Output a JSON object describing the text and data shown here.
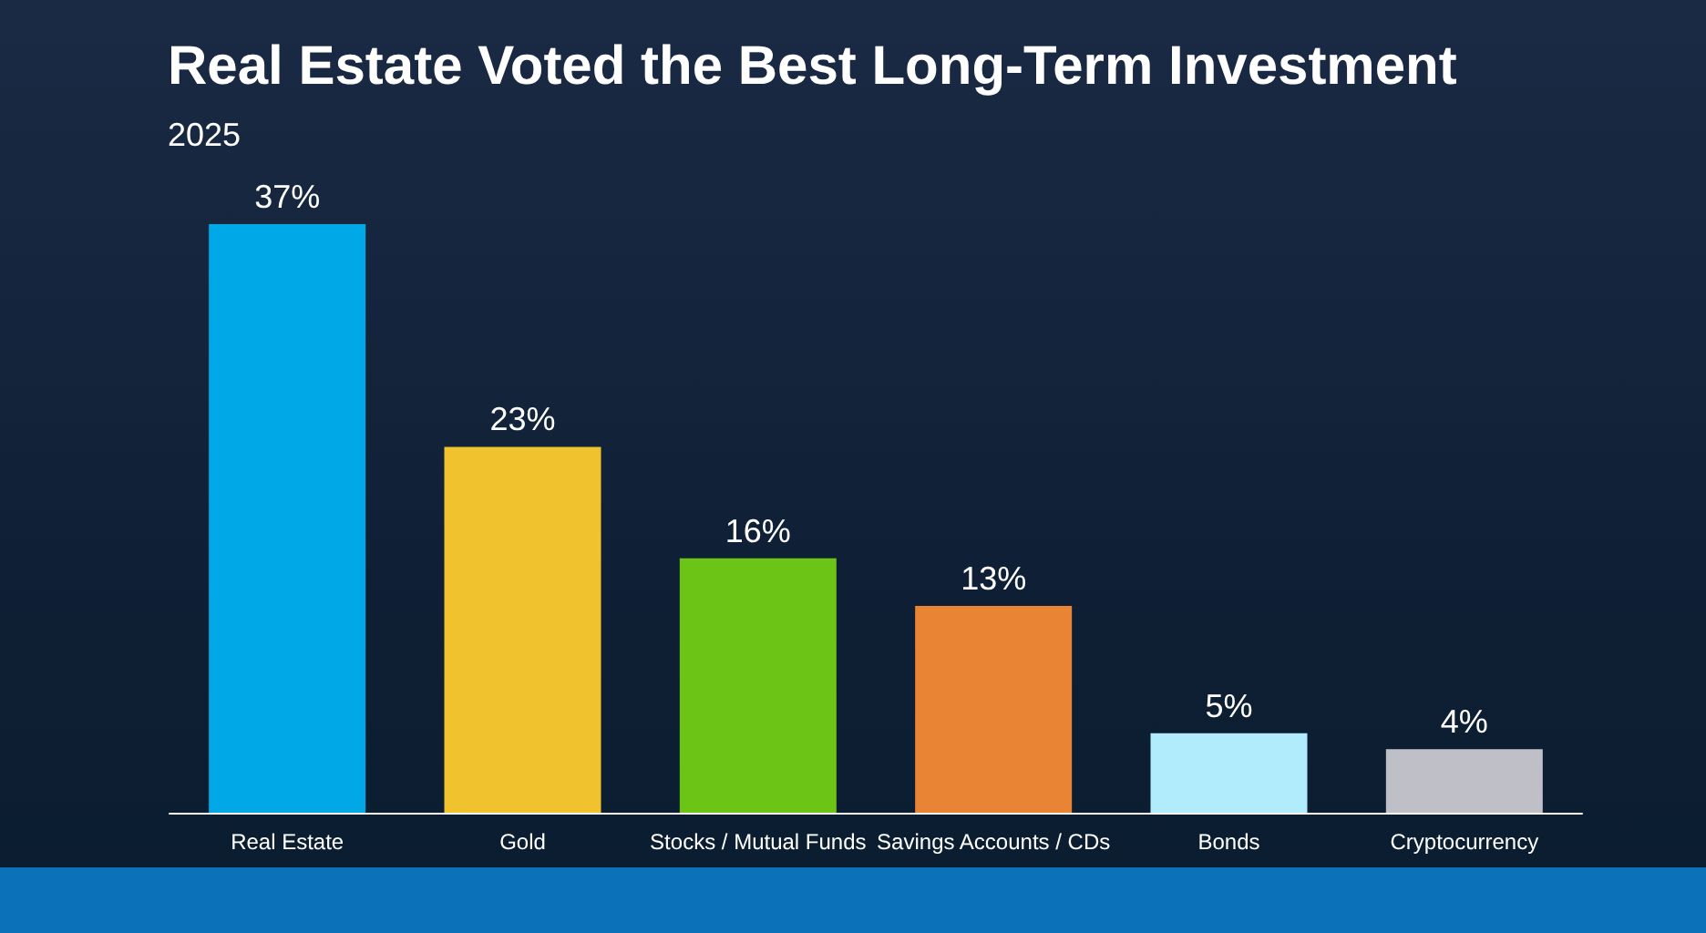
{
  "chart_data": {
    "type": "bar",
    "title": "Real Estate Voted the Best Long-Term Investment",
    "subtitle": "2025",
    "categories": [
      "Real Estate",
      "Gold",
      "Stocks / Mutual Funds",
      "Savings Accounts / CDs",
      "Bonds",
      "Cryptocurrency"
    ],
    "values": [
      37,
      23,
      16,
      13,
      5,
      4
    ],
    "colors": [
      "#00a8e8",
      "#f0c22e",
      "#6cc417",
      "#e98434",
      "#b0ecfc",
      "#bfbfc7"
    ],
    "value_labels": [
      "37%",
      "23%",
      "16%",
      "13%",
      "5%",
      "4%"
    ],
    "grid": false
  }
}
